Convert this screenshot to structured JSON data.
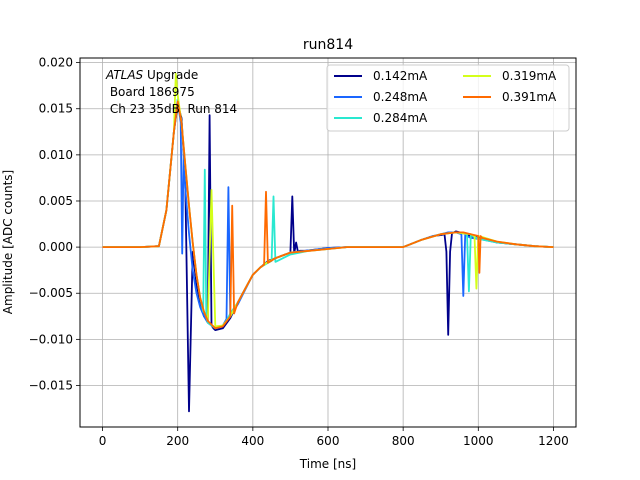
{
  "chart_data": {
    "type": "line",
    "title": "run814",
    "xlabel": "Time [ns]",
    "ylabel": "Amplitude [ADC counts]",
    "xlim": [
      -60,
      1260
    ],
    "ylim": [
      -0.0195,
      0.0205
    ],
    "xticks": [
      0,
      200,
      400,
      600,
      800,
      1000,
      1200
    ],
    "yticks": [
      -0.015,
      -0.01,
      -0.005,
      0.0,
      0.005,
      0.01,
      0.015,
      0.02
    ],
    "xtick_labels": [
      "0",
      "200",
      "400",
      "600",
      "800",
      "1000",
      "1200"
    ],
    "ytick_labels": [
      "−0.015",
      "−0.010",
      "−0.005",
      "0.000",
      "0.005",
      "0.010",
      "0.015",
      "0.020"
    ],
    "grid": true,
    "legend": {
      "placement": "top-right",
      "columns": 2
    },
    "annotation": {
      "italic": "ATLAS",
      "line1_rest": " Upgrade",
      "line2": " Board 186975",
      "line3": " Ch 23 35dB  Run 814"
    },
    "series": [
      {
        "name": "0.142mA",
        "color": "#00008b",
        "x": [
          0,
          50,
          100,
          150,
          170,
          190,
          200,
          210,
          220,
          230,
          240,
          250,
          260,
          270,
          280,
          285,
          290,
          295,
          300,
          320,
          340,
          360,
          380,
          400,
          420,
          440,
          460,
          480,
          500,
          505,
          510,
          515,
          520,
          525,
          540,
          560,
          580,
          600,
          650,
          700,
          750,
          800,
          850,
          880,
          900,
          910,
          915,
          920,
          925,
          930,
          940,
          960,
          980,
          1000,
          1050,
          1100,
          1150,
          1200
        ],
        "y": [
          0.0,
          0.0,
          0.0,
          0.0001,
          0.004,
          0.0125,
          0.0155,
          0.014,
          0.0075,
          -0.0178,
          -0.0005,
          -0.004,
          -0.006,
          -0.0075,
          -0.008,
          0.0143,
          -0.0085,
          -0.0088,
          -0.009,
          -0.0088,
          -0.0077,
          -0.006,
          -0.0045,
          -0.003,
          -0.0022,
          -0.0015,
          -0.0012,
          -0.0009,
          -0.0006,
          0.0055,
          -0.0007,
          0.0005,
          -0.0005,
          -0.0004,
          -0.0004,
          -0.0003,
          -0.0002,
          -0.0001,
          0.0,
          0.0,
          0.0,
          0.0,
          0.0008,
          0.0012,
          0.0013,
          0.0014,
          -0.0005,
          -0.0095,
          -0.0005,
          0.0015,
          0.0017,
          0.0015,
          0.0012,
          0.001,
          0.0005,
          0.0003,
          0.0001,
          0.0
        ]
      },
      {
        "name": "0.248mA",
        "color": "#1a66ff",
        "x": [
          0,
          50,
          100,
          150,
          170,
          190,
          200,
          208,
          212,
          216,
          220,
          230,
          240,
          250,
          260,
          270,
          280,
          300,
          320,
          330,
          335,
          340,
          360,
          380,
          400,
          420,
          440,
          460,
          480,
          500,
          520,
          540,
          560,
          580,
          600,
          650,
          700,
          750,
          800,
          850,
          880,
          900,
          920,
          940,
          955,
          960,
          965,
          970,
          980,
          1000,
          1050,
          1100,
          1150,
          1200
        ],
        "y": [
          0.0,
          0.0,
          0.0,
          0.0001,
          0.004,
          0.0125,
          0.016,
          0.0135,
          -0.0007,
          0.0105,
          0.0065,
          0.0015,
          -0.0025,
          -0.005,
          -0.0065,
          -0.0075,
          -0.0082,
          -0.0088,
          -0.0085,
          -0.0078,
          0.0065,
          -0.0075,
          -0.0062,
          -0.0046,
          -0.003,
          -0.0022,
          -0.0016,
          -0.0012,
          -0.0009,
          -0.0006,
          -0.0005,
          -0.0004,
          -0.0003,
          -0.0002,
          -0.0001,
          0.0,
          0.0,
          0.0,
          0.0,
          0.0008,
          0.0012,
          0.0014,
          0.0016,
          0.0016,
          0.0014,
          -0.0053,
          0.0013,
          0.0012,
          0.001,
          0.0009,
          0.0005,
          0.0003,
          0.0001,
          0.0
        ]
      },
      {
        "name": "0.284mA",
        "color": "#29e8d0",
        "x": [
          0,
          50,
          100,
          150,
          170,
          190,
          200,
          210,
          220,
          230,
          240,
          250,
          260,
          268,
          272,
          276,
          280,
          300,
          320,
          330,
          340,
          360,
          380,
          400,
          420,
          440,
          450,
          455,
          460,
          480,
          500,
          550,
          600,
          650,
          700,
          750,
          800,
          850,
          900,
          940,
          960,
          970,
          975,
          980,
          1000,
          1050,
          1100,
          1150,
          1200
        ],
        "y": [
          0.0,
          0.0,
          0.0,
          0.0001,
          0.004,
          0.0125,
          0.016,
          0.0135,
          0.009,
          0.0045,
          0.0005,
          -0.003,
          -0.0055,
          -0.007,
          0.0084,
          -0.0075,
          -0.0082,
          -0.0088,
          -0.0085,
          -0.008,
          -0.0072,
          -0.006,
          -0.0045,
          -0.003,
          -0.0022,
          -0.0017,
          -0.0015,
          0.0055,
          -0.0016,
          -0.0012,
          -0.0008,
          -0.0004,
          -0.0002,
          0.0,
          0.0,
          0.0,
          0.0,
          0.0008,
          0.0014,
          0.0016,
          0.0015,
          0.0014,
          -0.0048,
          0.0013,
          0.0009,
          0.0005,
          0.0003,
          0.0001,
          0.0
        ]
      },
      {
        "name": "0.319mA",
        "color": "#d4ff1a",
        "x": [
          0,
          50,
          100,
          150,
          170,
          190,
          195,
          200,
          210,
          220,
          230,
          240,
          250,
          260,
          270,
          280,
          290,
          300,
          320,
          340,
          360,
          380,
          400,
          420,
          440,
          460,
          480,
          500,
          550,
          600,
          650,
          700,
          750,
          800,
          850,
          900,
          940,
          960,
          980,
          990,
          995,
          1000,
          1010,
          1050,
          1100,
          1150,
          1200
        ],
        "y": [
          0.0,
          0.0,
          0.0,
          0.0001,
          0.004,
          0.0125,
          0.0188,
          0.0165,
          0.0135,
          0.009,
          0.0045,
          0.0005,
          -0.003,
          -0.0055,
          -0.007,
          -0.008,
          0.0062,
          -0.0086,
          -0.0085,
          -0.0075,
          -0.006,
          -0.0045,
          -0.003,
          -0.0022,
          -0.0016,
          -0.0012,
          -0.0009,
          -0.0006,
          -0.0004,
          -0.0002,
          0.0,
          0.0,
          0.0,
          0.0,
          0.0008,
          0.0014,
          0.0016,
          0.0015,
          0.0014,
          0.0012,
          -0.0045,
          0.0012,
          0.0011,
          0.0006,
          0.0003,
          0.0001,
          0.0
        ]
      },
      {
        "name": "0.391mA",
        "color": "#ff6a00",
        "x": [
          0,
          50,
          100,
          150,
          170,
          190,
          200,
          210,
          220,
          230,
          240,
          250,
          260,
          270,
          280,
          300,
          320,
          340,
          345,
          350,
          360,
          380,
          400,
          420,
          430,
          435,
          440,
          460,
          480,
          500,
          550,
          600,
          650,
          700,
          750,
          800,
          850,
          900,
          940,
          960,
          980,
          1000,
          1003,
          1006,
          1010,
          1050,
          1100,
          1150,
          1200
        ],
        "y": [
          0.0,
          0.0,
          0.0,
          0.0001,
          0.004,
          0.0125,
          0.0158,
          0.0135,
          0.009,
          0.0045,
          0.0005,
          -0.003,
          -0.0055,
          -0.007,
          -0.008,
          -0.0088,
          -0.0086,
          -0.0075,
          0.0045,
          -0.0072,
          -0.006,
          -0.0045,
          -0.003,
          -0.0022,
          -0.0019,
          0.006,
          -0.0017,
          -0.0012,
          -0.0009,
          -0.0006,
          -0.0004,
          -0.0002,
          0.0,
          0.0,
          0.0,
          0.0,
          0.0008,
          0.0014,
          0.0016,
          0.0016,
          0.0014,
          0.0012,
          -0.0028,
          0.0012,
          0.001,
          0.0006,
          0.0003,
          0.0001,
          0.0
        ]
      }
    ]
  }
}
